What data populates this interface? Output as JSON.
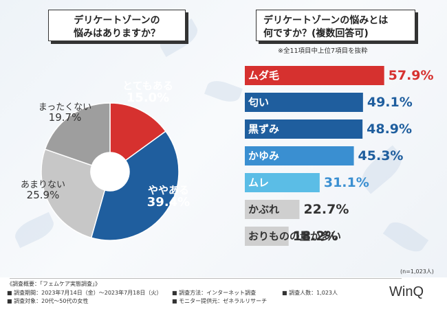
{
  "left_question": [
    "デリケートゾーンの",
    "悩みはありますか？"
  ],
  "right_question": [
    "デリケートゾーンの悩みとは",
    "何ですか？(複数回答可)"
  ],
  "right_note": "※全11項目中上位7項目を抜粋",
  "sample_note": "(n=1,023人)",
  "chart_data": [
    {
      "type": "pie",
      "title": "デリケートゾーンの悩みはありますか？",
      "slices": [
        {
          "label": "とてもある",
          "value": 15.0,
          "display": "15.0%",
          "color": "#d6312f"
        },
        {
          "label": "ややある",
          "value": 39.4,
          "display": "39.4%",
          "color": "#1f5e9e"
        },
        {
          "label": "あまりない",
          "value": 25.9,
          "display": "25.9%",
          "color": "#c7c7c7"
        },
        {
          "label": "まったくない",
          "value": 19.7,
          "display": "19.7%",
          "color": "#9e9e9e"
        }
      ]
    },
    {
      "type": "bar",
      "title": "デリケートゾーンの悩みとは何ですか？(複数回答可)",
      "categories": [
        "ムダ毛",
        "匂い",
        "黒ずみ",
        "かゆみ",
        "ムレ",
        "かぶれ",
        "おりものの量が多い"
      ],
      "values": [
        57.9,
        49.1,
        48.9,
        45.3,
        31.1,
        22.7,
        18.2
      ],
      "display": [
        "57.9%",
        "49.1%",
        "48.9%",
        "45.3%",
        "31.1%",
        "22.7%",
        "18.2%"
      ],
      "colors": [
        "#d6312f",
        "#1f5e9e",
        "#1f5e9e",
        "#3a8fd1",
        "#5bbde6",
        "#cfcfcf",
        "#cfcfcf"
      ],
      "value_colors": [
        "#d6312f",
        "#1f5e9e",
        "#1f5e9e",
        "#1f5e9e",
        "#3a8fd1",
        "#333333",
        "#333333"
      ],
      "label_colors": [
        "#ffffff",
        "#ffffff",
        "#ffffff",
        "#ffffff",
        "#ffffff",
        "#333333",
        "#333333"
      ],
      "xlim": [
        0,
        60
      ]
    }
  ],
  "footer": {
    "overview": "《調査概要：「フェムケア実態調査」》",
    "period": "■ 調査期間：2023年7月14日（金）～2023年7月18日（火）",
    "target": "■ 調査対象：20代～50代の女性",
    "method": "■ 調査方法：インターネット調査",
    "provider": "■ モニター提供元：ゼネラルリサーチ",
    "count": "■ 調査人数：1,023人"
  },
  "brand": "WinQ"
}
